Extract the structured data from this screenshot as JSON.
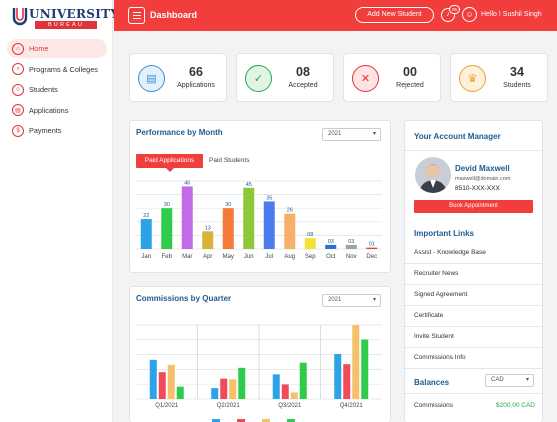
{
  "brand": {
    "name": "UNIVERSITY",
    "sub": "BUREAU"
  },
  "sidebar": {
    "items": [
      {
        "label": "Home",
        "icon": "home-icon",
        "glyph": "⌂"
      },
      {
        "label": "Programs & Colleges",
        "icon": "search-icon",
        "glyph": "⌕"
      },
      {
        "label": "Students",
        "icon": "student-icon",
        "glyph": "☺"
      },
      {
        "label": "Applications",
        "icon": "document-icon",
        "glyph": "▤"
      },
      {
        "label": "Payments",
        "icon": "dollar-icon",
        "glyph": "$"
      }
    ]
  },
  "topbar": {
    "title": "Dashboard",
    "add_button": "Add New Student",
    "notif_count": "05",
    "greeting": "Hello ! Sushil Singh"
  },
  "stats": [
    {
      "value": "66",
      "label": "Applications",
      "icon": "document-icon",
      "glyph": "▤",
      "color": "#3a8fd8",
      "bg": "#e4f0fb"
    },
    {
      "value": "08",
      "label": "Accepted",
      "icon": "clipboard-check-icon",
      "glyph": "✓",
      "color": "#2aa84a",
      "bg": "#e2f4e6"
    },
    {
      "value": "00",
      "label": "Rejected",
      "icon": "document-x-icon",
      "glyph": "✕",
      "color": "#e0343a",
      "bg": "#fde3e3"
    },
    {
      "value": "34",
      "label": "Students",
      "icon": "graduate-icon",
      "glyph": "♛",
      "color": "#f0a12a",
      "bg": "#fdf0dc"
    }
  ],
  "performance": {
    "title": "Performance by Month",
    "year": "2021",
    "tab_active": "Paid Applications",
    "tab_inactive": "Paid Students"
  },
  "commissions": {
    "title": "Commissions by Quarter",
    "year": "2021"
  },
  "manager": {
    "title": "Your Account Manager",
    "name": "Devid Maxwell",
    "email": "maxwell@domain.com",
    "phone": "8510-XXX-XXX",
    "book_button": "Book Appointment"
  },
  "links": {
    "title": "Important Links",
    "items": [
      "Assist - Knowledge Base",
      "Recruiter News",
      "Signed Agreement",
      "Certificate",
      "Invite Student",
      "Commissions Info"
    ]
  },
  "balances": {
    "title": "Balances",
    "currency": "CAD",
    "rows": [
      {
        "label": "Commissions",
        "value": "$200.00 CAD"
      }
    ]
  },
  "chart_data": [
    {
      "type": "bar",
      "title": "Performance by Month",
      "categories": [
        "Jan",
        "Feb",
        "Mar",
        "Apr",
        "May",
        "Jun",
        "Jul",
        "Aug",
        "Sep",
        "Oct",
        "Nov",
        "Dec"
      ],
      "values": [
        22,
        30,
        46,
        13,
        30,
        45,
        35,
        26,
        8,
        3,
        3,
        1
      ],
      "labels": [
        "22",
        "30",
        "46",
        "13",
        "30",
        "45",
        "35",
        "26",
        "08",
        "03",
        "03",
        "01"
      ],
      "colors": [
        "#2aa3e8",
        "#2ecc4a",
        "#c26be8",
        "#d9b23a",
        "#f57a3a",
        "#8cc83a",
        "#4b7bec",
        "#f5b06a",
        "#f5e03a",
        "#2f6fd8",
        "#a0a0a0",
        "#e8403a"
      ],
      "ylim": [
        0,
        50
      ],
      "grid": true
    },
    {
      "type": "bar",
      "title": "Commissions by Quarter",
      "categories": [
        "Q1/2021",
        "Q2/2021",
        "Q3/2021",
        "Q4/2021"
      ],
      "series": [
        {
          "color": "#2aa3e8",
          "values": [
            54,
            15,
            34,
            62
          ]
        },
        {
          "color": "#f24a5a",
          "values": [
            37,
            28,
            20,
            48
          ]
        },
        {
          "color": "#f5c06a",
          "values": [
            47,
            27,
            9,
            102
          ]
        },
        {
          "color": "#2ecc4a",
          "values": [
            17,
            43,
            50,
            82
          ]
        }
      ],
      "ylim": [
        0,
        102
      ],
      "grid": true
    }
  ]
}
